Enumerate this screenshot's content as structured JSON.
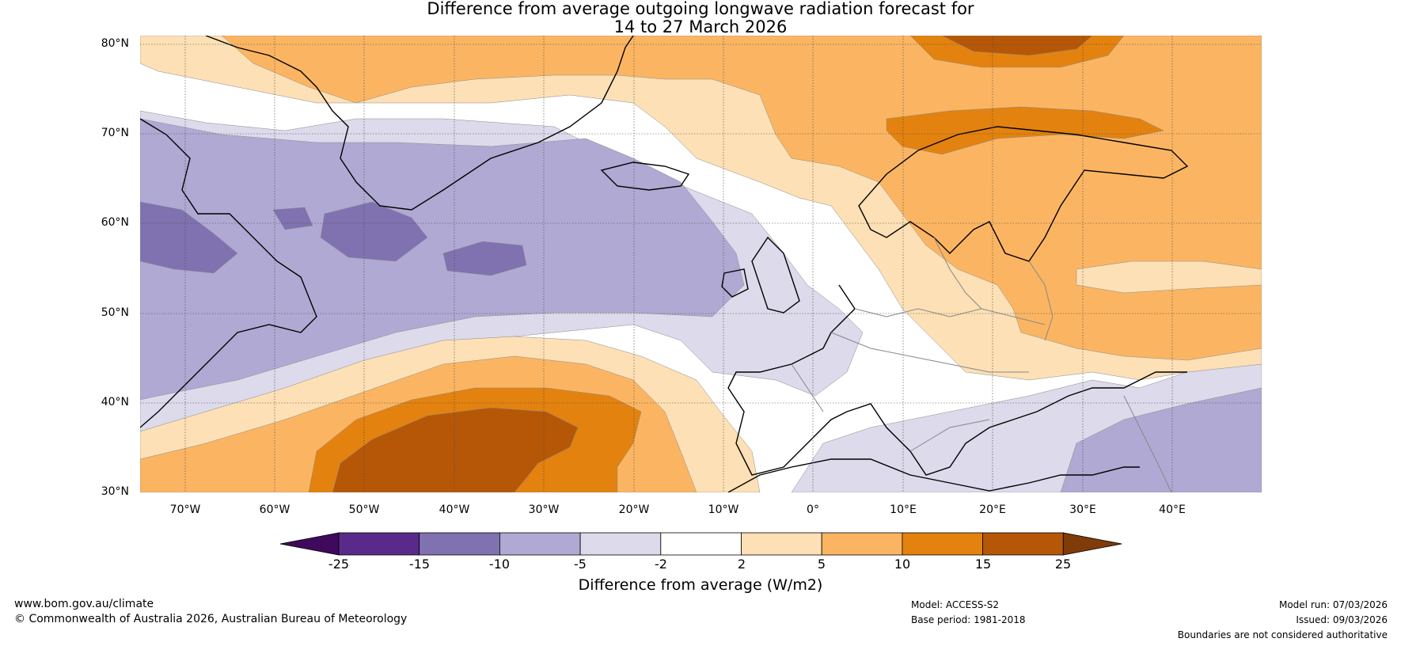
{
  "title": {
    "line1": "Difference from average outgoing longwave radiation forecast for",
    "line2": "14 to 27 March 2026"
  },
  "map": {
    "lat_labels": [
      "80°N",
      "70°N",
      "60°N",
      "50°N",
      "40°N",
      "30°N"
    ],
    "lon_labels": [
      "70°W",
      "60°W",
      "50°W",
      "40°W",
      "30°W",
      "20°W",
      "10°W",
      "0°",
      "10°E",
      "20°E",
      "30°E",
      "40°E"
    ],
    "extent": {
      "lon_min": -75,
      "lon_max": 50,
      "lat_min": 30,
      "lat_max": 81
    }
  },
  "colorbar": {
    "ticks": [
      "-25",
      "-15",
      "-10",
      "-5",
      "-2",
      "2",
      "5",
      "10",
      "15",
      "25"
    ],
    "colors": [
      "#3f0a5c",
      "#5a2a8a",
      "#8072b0",
      "#b0a9d3",
      "#dcdaeb",
      "#ffffff",
      "#fde0b5",
      "#fbb562",
      "#e3820f",
      "#b65707",
      "#7f3b08"
    ],
    "label": "Difference from average (W/m2)"
  },
  "footer": {
    "website": "www.bom.gov.au/climate",
    "copyright": "© Commonwealth of Australia 2026, Australian Bureau of Meteorology",
    "model": "Model: ACCESS-S2",
    "base_period": "Base period: 1981-2018",
    "model_run": "Model run: 07/03/2026",
    "issued": "Issued: 09/03/2026",
    "disclaimer": "Boundaries are not considered authoritative"
  }
}
